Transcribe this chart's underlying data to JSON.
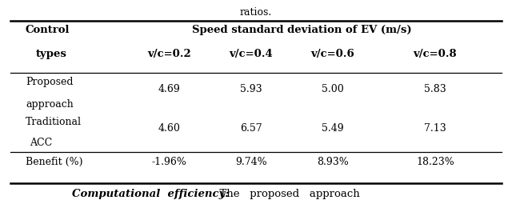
{
  "caption_top": "ratios.",
  "header_col": "Speed standard deviation of EV (m/s)",
  "col1_line1": "Control",
  "col1_line2": "types",
  "subheaders": [
    "v/c=0.2",
    "v/c=0.4",
    "v/c=0.6",
    "v/c=0.8"
  ],
  "row0_line1": "Proposed",
  "row0_line2": "approach",
  "row0_values": [
    "4.69",
    "5.93",
    "5.00",
    "5.83"
  ],
  "row1_line1": "Traditional",
  "row1_line2": "ACC",
  "row1_values": [
    "4.60",
    "6.57",
    "5.49",
    "7.13"
  ],
  "row2_label": "Benefit (%)",
  "row2_values": [
    "-1.96%",
    "9.74%",
    "8.93%",
    "18.23%"
  ],
  "caption_bottom_italic": "Computational  efficiency:",
  "caption_bottom_normal": "  The   proposed   approach",
  "bg_color": "#ffffff",
  "text_color": "#000000",
  "line_color": "#000000",
  "figsize": [
    6.4,
    2.5
  ],
  "dpi": 100
}
